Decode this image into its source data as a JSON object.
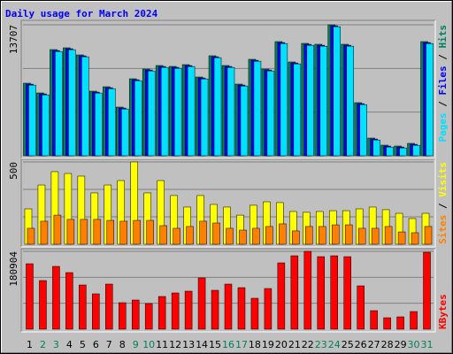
{
  "chart_data": [
    {
      "type": "bar",
      "title": "Daily usage for March 2024",
      "ylim": [
        0,
        13707
      ],
      "yticks": [
        13707
      ],
      "grid_divisions": 3,
      "legend_separator": " / ",
      "legend_align": "top",
      "series": [
        {
          "name": "Hits",
          "color": "#00805c",
          "values": [
            7594,
            6576,
            11114,
            11299,
            10558,
            6761,
            7224,
            5094,
            8058,
            9076,
            9447,
            9354,
            9539,
            8243,
            10466,
            9447,
            7502,
            10095,
            9076,
            11948,
            9817,
            11762,
            11670,
            13707,
            11670,
            5557,
            1852,
            1111,
            1019,
            1297,
            11948
          ]
        },
        {
          "name": "Files",
          "color": "#0000ff",
          "values": [
            7494,
            6476,
            11014,
            11199,
            10458,
            6661,
            7124,
            4994,
            7958,
            8976,
            9347,
            9254,
            9439,
            8143,
            10366,
            9347,
            7402,
            9995,
            8976,
            11848,
            9717,
            11662,
            11570,
            13607,
            11570,
            5457,
            1752,
            1011,
            919,
            1197,
            11848
          ]
        },
        {
          "name": "Pages",
          "color": "#00e0ff",
          "values": [
            7394,
            6376,
            10914,
            11099,
            10358,
            6561,
            7024,
            4894,
            7858,
            8876,
            9247,
            9154,
            9339,
            8043,
            10266,
            9247,
            7302,
            9895,
            8876,
            11748,
            9617,
            11562,
            11470,
            13507,
            11470,
            5357,
            1652,
            911,
            819,
            1097,
            11748
          ]
        }
      ]
    },
    {
      "type": "bar",
      "ylim": [
        0,
        500
      ],
      "yticks": [
        500
      ],
      "grid_divisions": 3,
      "legend_separator": " / ",
      "legend_align": "top",
      "series": [
        {
          "name": "Visits",
          "color": "#ffff00",
          "values": [
            215,
            360,
            441,
            430,
            414,
            312,
            360,
            387,
            500,
            312,
            387,
            296,
            226,
            296,
            242,
            226,
            177,
            237,
            258,
            253,
            199,
            194,
            199,
            204,
            204,
            215,
            226,
            210,
            188,
            156,
            188
          ]
        },
        {
          "name": "Sites",
          "color": "#ff8000",
          "values": [
            97,
            140,
            177,
            151,
            151,
            151,
            145,
            140,
            145,
            145,
            113,
            97,
            108,
            140,
            129,
            97,
            86,
            97,
            108,
            124,
            81,
            108,
            108,
            118,
            118,
            97,
            97,
            108,
            75,
            70,
            108
          ]
        }
      ]
    },
    {
      "type": "bar",
      "ylim": [
        0,
        180904
      ],
      "yticks": [
        180904
      ],
      "grid_divisions": 3,
      "legend_separator": " / ",
      "legend_align": "bottom",
      "series": [
        {
          "name": "KBytes",
          "color": "#ff0000",
          "values": [
            152124,
            113066,
            145956,
            131566,
            102786,
            82229,
            104842,
            61672,
            67840,
            59615,
            76062,
            84285,
            88397,
            119234,
            90452,
            104842,
            96619,
            71951,
            94563,
            154180,
            170626,
            180904,
            168570,
            170626,
            168570,
            100730,
            43171,
            26725,
            28781,
            41115,
            178848
          ]
        }
      ],
      "categories": [
        "1",
        "2",
        "3",
        "4",
        "5",
        "6",
        "7",
        "8",
        "9",
        "10",
        "11",
        "12",
        "13",
        "14",
        "15",
        "16",
        "17",
        "18",
        "19",
        "20",
        "21",
        "22",
        "23",
        "24",
        "25",
        "26",
        "27",
        "28",
        "29",
        "30",
        "31"
      ],
      "category_colors": [
        "#000000",
        "#00805c",
        "#00805c",
        "#000000",
        "#000000",
        "#000000",
        "#000000",
        "#000000",
        "#00805c",
        "#00805c",
        "#000000",
        "#000000",
        "#000000",
        "#000000",
        "#000000",
        "#00805c",
        "#00805c",
        "#000000",
        "#000000",
        "#000000",
        "#000000",
        "#000000",
        "#00805c",
        "#00805c",
        "#000000",
        "#000000",
        "#000000",
        "#000000",
        "#000000",
        "#00805c",
        "#00805c"
      ]
    }
  ]
}
